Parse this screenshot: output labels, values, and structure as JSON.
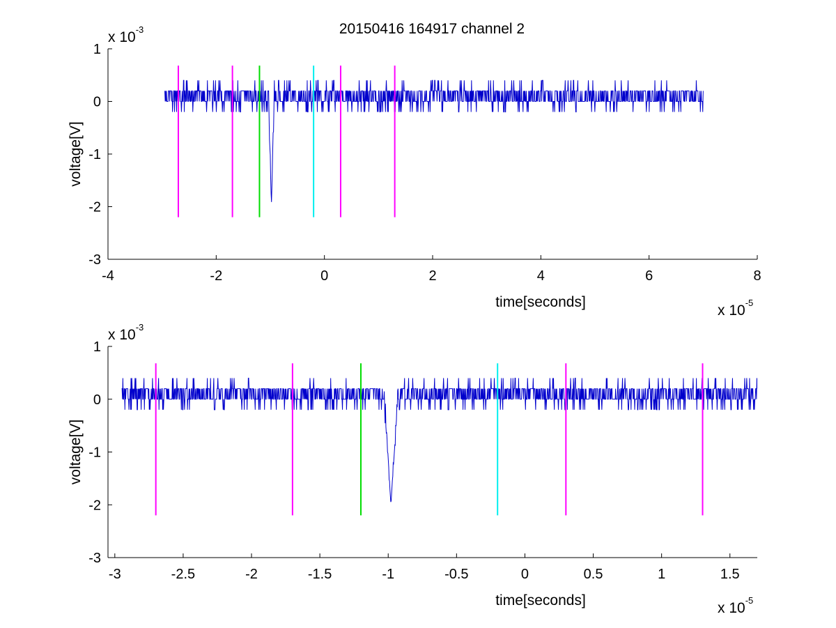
{
  "figure": {
    "title": "20150416 164917 channel 2",
    "background": "#ffffff"
  },
  "colors": {
    "signal": "#0000cc",
    "marker_magenta": "#ff00ff",
    "marker_green": "#00dd00",
    "marker_cyan": "#00eeee",
    "axis": "#000000"
  },
  "chart_data": [
    {
      "type": "line",
      "title": "20150416 164917 channel 2",
      "xlabel": "time[seconds]",
      "ylabel": "voltage[V]",
      "x_multiplier": {
        "base": "x 10",
        "exponent": "-5"
      },
      "y_multiplier": {
        "base": "x 10",
        "exponent": "-3"
      },
      "xlim": [
        -4,
        8
      ],
      "ylim": [
        -3,
        1
      ],
      "xticks": [
        -4,
        -2,
        0,
        2,
        4,
        6,
        8
      ],
      "yticks": [
        -3,
        -2,
        -1,
        0,
        1
      ],
      "xtick_labels": [
        "-4",
        "-2",
        "0",
        "2",
        "4",
        "6",
        "8"
      ],
      "ytick_labels": [
        "-3",
        "-2",
        "-1",
        "0",
        "1"
      ],
      "grid": false,
      "series": [
        {
          "color": "#0000cc",
          "x_range": [
            -2.95,
            7.0
          ],
          "baseline": 0.0,
          "noise_levels": [
            -0.2,
            0.0,
            0.2,
            0.4
          ],
          "spike": {
            "x": -0.98,
            "y": -2.0,
            "width": 0.1
          },
          "points_approx": [
            [
              -2.95,
              0.0
            ],
            [
              -2.0,
              0.2
            ],
            [
              -1.2,
              0.0
            ],
            [
              -1.0,
              -0.2
            ],
            [
              -0.98,
              -2.0
            ],
            [
              -0.95,
              0.0
            ],
            [
              0.0,
              0.2
            ],
            [
              2.0,
              0.0
            ],
            [
              4.0,
              0.2
            ],
            [
              6.0,
              0.0
            ],
            [
              6.85,
              0.6
            ],
            [
              7.0,
              0.2
            ]
          ]
        }
      ],
      "markers": [
        {
          "x": -2.7,
          "y_range": [
            -2.2,
            0.68
          ],
          "color": "#ff00ff"
        },
        {
          "x": -1.7,
          "y_range": [
            -2.2,
            0.68
          ],
          "color": "#ff00ff"
        },
        {
          "x": -1.2,
          "y_range": [
            -2.2,
            0.68
          ],
          "color": "#00dd00"
        },
        {
          "x": -0.2,
          "y_range": [
            -2.2,
            0.68
          ],
          "color": "#00eeee"
        },
        {
          "x": 0.3,
          "y_range": [
            -2.2,
            0.68
          ],
          "color": "#ff00ff"
        },
        {
          "x": 1.3,
          "y_range": [
            -2.2,
            0.68
          ],
          "color": "#ff00ff"
        }
      ]
    },
    {
      "type": "line",
      "title": "",
      "xlabel": "time[seconds]",
      "ylabel": "voltage[V]",
      "x_multiplier": {
        "base": "x 10",
        "exponent": "-5"
      },
      "y_multiplier": {
        "base": "x 10",
        "exponent": "-3"
      },
      "xlim": [
        -3.05,
        1.7
      ],
      "ylim": [
        -3,
        1
      ],
      "xticks": [
        -3,
        -2.5,
        -2,
        -1.5,
        -1,
        -0.5,
        0,
        0.5,
        1,
        1.5
      ],
      "yticks": [
        -3,
        -2,
        -1,
        0,
        1
      ],
      "xtick_labels": [
        "-3",
        "-2.5",
        "-2",
        "-1.5",
        "-1",
        "-0.5",
        "0",
        "0.5",
        "1",
        "1.5"
      ],
      "ytick_labels": [
        "-3",
        "-2",
        "-1",
        "0",
        "1"
      ],
      "grid": false,
      "series": [
        {
          "color": "#0000cc",
          "x_range": [
            -2.95,
            1.7
          ],
          "baseline": 0.0,
          "noise_levels": [
            -0.2,
            0.0,
            0.2,
            0.4
          ],
          "spike": {
            "x": -0.98,
            "y": -2.0,
            "width": 0.1
          },
          "points_approx": [
            [
              -2.95,
              0.0
            ],
            [
              -2.5,
              0.2
            ],
            [
              -2.0,
              0.0
            ],
            [
              -1.5,
              0.2
            ],
            [
              -1.2,
              0.0
            ],
            [
              -1.0,
              -0.2
            ],
            [
              -0.98,
              -2.0
            ],
            [
              -0.95,
              0.0
            ],
            [
              -0.5,
              0.2
            ],
            [
              0.0,
              0.0
            ],
            [
              0.5,
              0.2
            ],
            [
              1.0,
              0.0
            ],
            [
              1.7,
              0.4
            ]
          ]
        }
      ],
      "markers": [
        {
          "x": -2.7,
          "y_range": [
            -2.2,
            0.68
          ],
          "color": "#ff00ff"
        },
        {
          "x": -1.7,
          "y_range": [
            -2.2,
            0.68
          ],
          "color": "#ff00ff"
        },
        {
          "x": -1.2,
          "y_range": [
            -2.2,
            0.68
          ],
          "color": "#00dd00"
        },
        {
          "x": -0.2,
          "y_range": [
            -2.2,
            0.68
          ],
          "color": "#00eeee"
        },
        {
          "x": 0.3,
          "y_range": [
            -2.2,
            0.68
          ],
          "color": "#ff00ff"
        },
        {
          "x": 1.3,
          "y_range": [
            -2.2,
            0.68
          ],
          "color": "#ff00ff"
        }
      ]
    }
  ]
}
